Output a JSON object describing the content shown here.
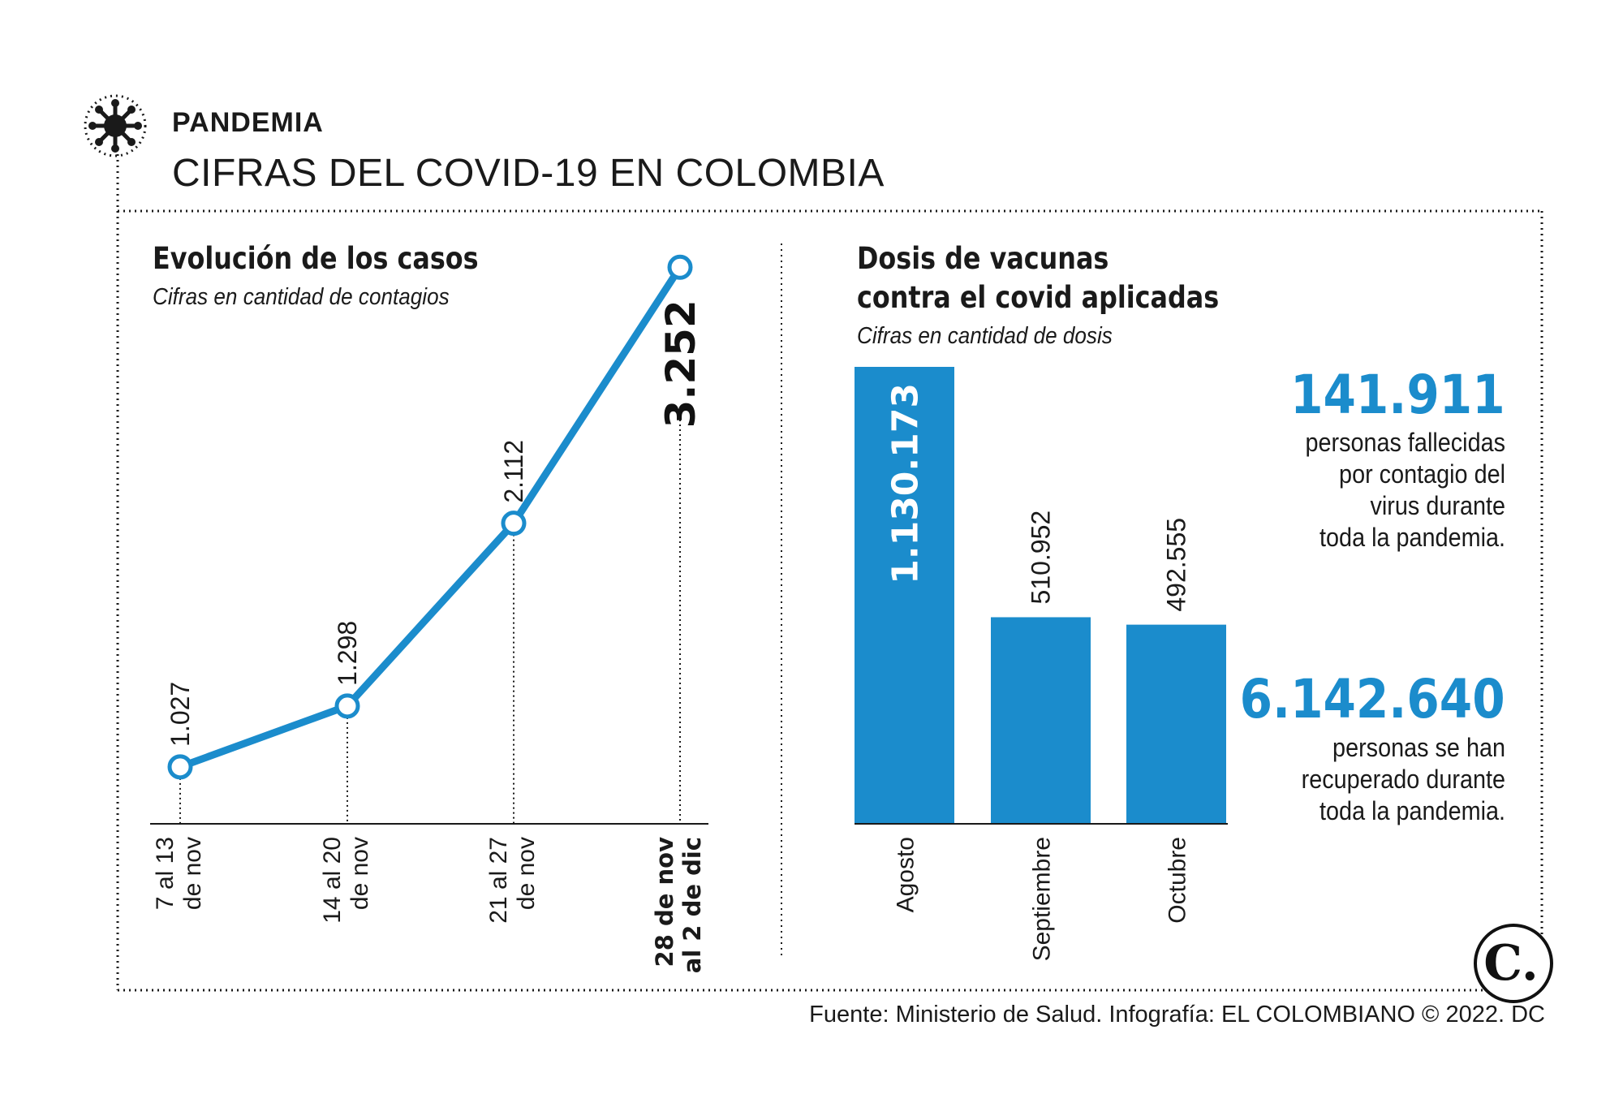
{
  "header": {
    "kicker": "PANDEMIA",
    "headline": "CIFRAS DEL COVID-19 EN COLOMBIA"
  },
  "colors": {
    "accent": "#1b8ccc",
    "text": "#1a1a1a"
  },
  "icons": {
    "virus": "virus-icon",
    "logo": "el-colombiano-logo"
  },
  "logo_letter": "C.",
  "chart_data": [
    {
      "type": "line",
      "title": "Evolución de los casos",
      "subtitle": "Cifras en cantidad de contagios",
      "categories": [
        [
          "7 al 13",
          "de nov"
        ],
        [
          "14 al 20",
          "de nov"
        ],
        [
          "21 al 27",
          "de nov"
        ],
        [
          "28 de nov",
          "al 2 de dic"
        ]
      ],
      "values": [
        1027,
        1298,
        2112,
        3252
      ],
      "value_labels": [
        "1.027",
        "1.298",
        "2.112",
        "3.252"
      ],
      "highlight_index": 3,
      "ylim": [
        900,
        3300
      ]
    },
    {
      "type": "bar",
      "title_lines": [
        "Dosis de vacunas",
        "contra el covid aplicadas"
      ],
      "subtitle": "Cifras en cantidad de dosis",
      "categories": [
        "Agosto",
        "Septiembre",
        "Octubre"
      ],
      "values": [
        1130173,
        510952,
        492555
      ],
      "value_labels": [
        "1.130.173",
        "510.952",
        "492.555"
      ],
      "ylim": [
        0,
        1130173
      ]
    }
  ],
  "stats": [
    {
      "value": "141.911",
      "lines": [
        "personas fallecidas",
        "por contagio del",
        "virus durante",
        "toda la pandemia."
      ]
    },
    {
      "value": "6.142.640",
      "lines": [
        "personas se han",
        "recuperado durante",
        "toda la pandemia."
      ]
    }
  ],
  "footer": "Fuente: Ministerio de Salud. Infografía: EL COLOMBIANO © 2022. DC"
}
